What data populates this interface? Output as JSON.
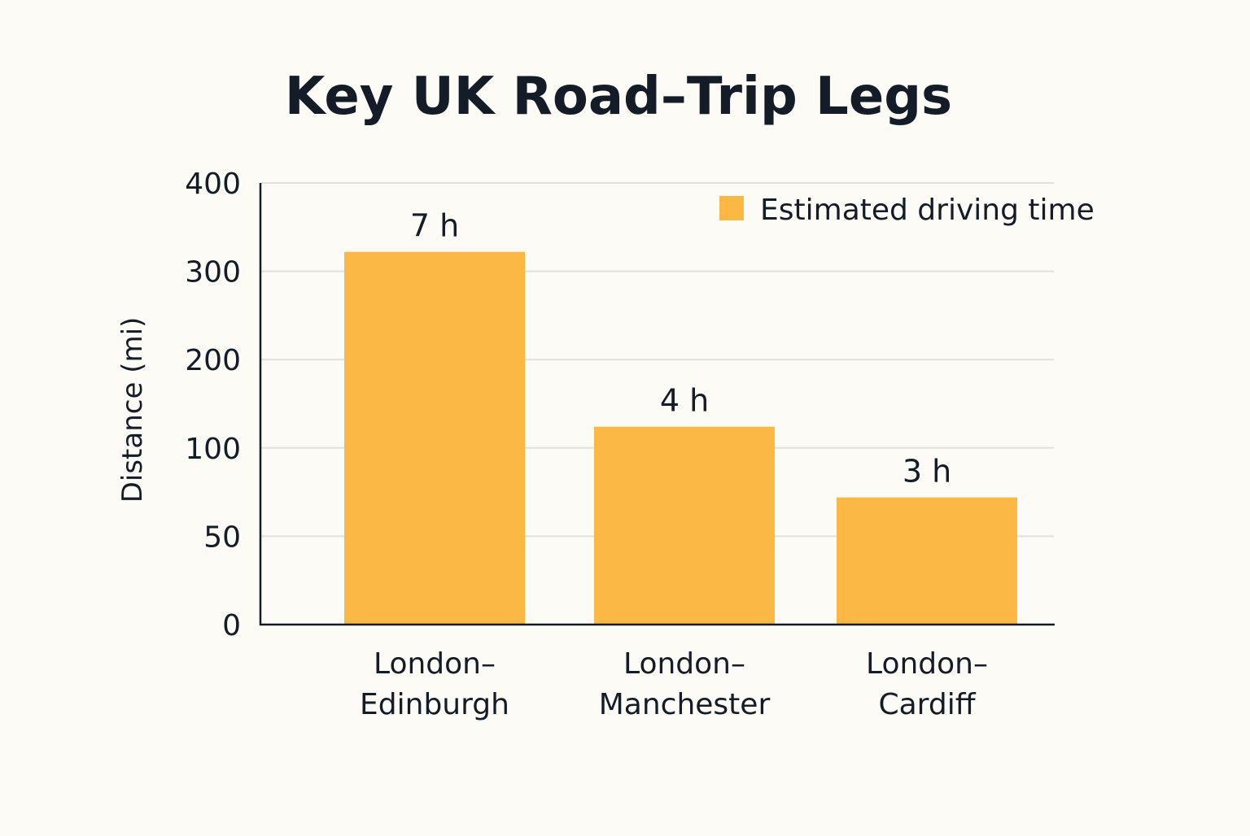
{
  "chart_data": {
    "type": "bar",
    "title": "Key UK Road–Trip Legs",
    "xlabel": "",
    "ylabel": "Distance (mi)",
    "categories": [
      [
        "London–",
        "Edinburgh"
      ],
      [
        "London–",
        "Manchester"
      ],
      [
        "London–",
        "Cardiff"
      ]
    ],
    "values": [
      322,
      124,
      72
    ],
    "data_labels": [
      "7 h",
      "4 h",
      "3 h"
    ],
    "yticks": [
      0,
      50,
      100,
      200,
      300,
      400
    ],
    "ylim": [
      0,
      400
    ],
    "grid": true,
    "legend": {
      "position": "top-right",
      "entries": [
        {
          "label": "Estimated driving time",
          "color": "#fbb845"
        }
      ]
    },
    "bar_color": "#fbb845"
  }
}
